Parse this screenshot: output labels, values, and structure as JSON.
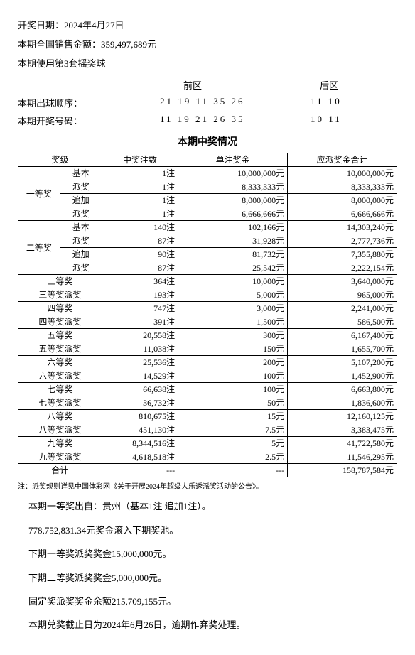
{
  "header": {
    "date_label": "开奖日期：2024年4月27日",
    "sales_label": "本期全国销售金额：359,497,689元",
    "ball_set_label": "本期使用第3套摇奖球"
  },
  "area": {
    "front_label": "前区",
    "back_label": "后区"
  },
  "draw_order": {
    "label": "本期出球顺序：",
    "front": "21 19 11 35 26",
    "back": "11 10"
  },
  "draw_numbers": {
    "label": "本期开奖号码：",
    "front": "11 19 21 26 35",
    "back": "10 11"
  },
  "section_title": "本期中奖情况",
  "table_headers": {
    "level": "奖级",
    "count": "中奖注数",
    "unit": "单注奖金",
    "total": "应派奖金合计"
  },
  "groups": [
    {
      "group_label": "一等奖",
      "rows": [
        {
          "sub": "基本",
          "count": "1注",
          "unit": "10,000,000元",
          "total": "10,000,000元"
        },
        {
          "sub": "派奖",
          "count": "1注",
          "unit": "8,333,333元",
          "total": "8,333,333元"
        },
        {
          "sub": "追加",
          "count": "1注",
          "unit": "8,000,000元",
          "total": "8,000,000元"
        },
        {
          "sub": "派奖",
          "count": "1注",
          "unit": "6,666,666元",
          "total": "6,666,666元"
        }
      ]
    },
    {
      "group_label": "二等奖",
      "rows": [
        {
          "sub": "基本",
          "count": "140注",
          "unit": "102,166元",
          "total": "14,303,240元"
        },
        {
          "sub": "派奖",
          "count": "87注",
          "unit": "31,928元",
          "total": "2,777,736元"
        },
        {
          "sub": "追加",
          "count": "90注",
          "unit": "81,732元",
          "total": "7,355,880元"
        },
        {
          "sub": "派奖",
          "count": "87注",
          "unit": "25,542元",
          "total": "2,222,154元"
        }
      ]
    }
  ],
  "single_rows": [
    {
      "label": "三等奖",
      "count": "364注",
      "unit": "10,000元",
      "total": "3,640,000元"
    },
    {
      "label": "三等奖派奖",
      "count": "193注",
      "unit": "5,000元",
      "total": "965,000元"
    },
    {
      "label": "四等奖",
      "count": "747注",
      "unit": "3,000元",
      "total": "2,241,000元"
    },
    {
      "label": "四等奖派奖",
      "count": "391注",
      "unit": "1,500元",
      "total": "586,500元"
    },
    {
      "label": "五等奖",
      "count": "20,558注",
      "unit": "300元",
      "total": "6,167,400元"
    },
    {
      "label": "五等奖派奖",
      "count": "11,038注",
      "unit": "150元",
      "total": "1,655,700元"
    },
    {
      "label": "六等奖",
      "count": "25,536注",
      "unit": "200元",
      "total": "5,107,200元"
    },
    {
      "label": "六等奖派奖",
      "count": "14,529注",
      "unit": "100元",
      "total": "1,452,900元"
    },
    {
      "label": "七等奖",
      "count": "66,638注",
      "unit": "100元",
      "total": "6,663,800元"
    },
    {
      "label": "七等奖派奖",
      "count": "36,732注",
      "unit": "50元",
      "total": "1,836,600元"
    },
    {
      "label": "八等奖",
      "count": "810,675注",
      "unit": "15元",
      "total": "12,160,125元"
    },
    {
      "label": "八等奖派奖",
      "count": "451,130注",
      "unit": "7.5元",
      "total": "3,383,475元"
    },
    {
      "label": "九等奖",
      "count": "8,344,516注",
      "unit": "5元",
      "total": "41,722,580元"
    },
    {
      "label": "九等奖派奖",
      "count": "4,618,518注",
      "unit": "2.5元",
      "total": "11,546,295元"
    }
  ],
  "total_row": {
    "label": "合计",
    "count": "---",
    "unit": "---",
    "total": "158,787,584元"
  },
  "note": "注：派奖规则详见中国体彩网《关于开展2024年超级大乐透派奖活动的公告》。",
  "footer": {
    "l1": "本期一等奖出自：贵州（基本1注 追加1注）。",
    "l2": "778,752,831.34元奖金滚入下期奖池。",
    "l3": "下期一等奖派奖奖金15,000,000元。",
    "l4": "下期二等奖派奖奖金5,000,000元。",
    "l5": "固定奖派奖奖金余额215,709,155元。",
    "l6": "本期兑奖截止日为2024年6月26日，逾期作弃奖处理。"
  }
}
